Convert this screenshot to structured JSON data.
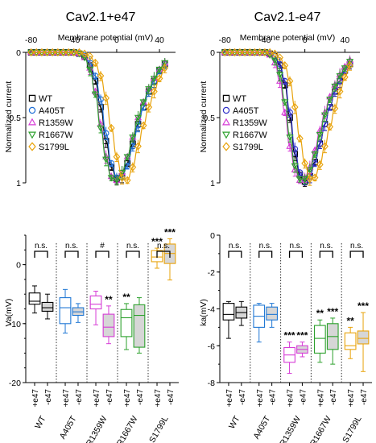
{
  "chart_data": [
    {
      "type": "line",
      "title": "Cav2.1+e47",
      "xlabel": "Membrane potential (mV)",
      "ylabel": "Normalized current",
      "xlim": [
        -85,
        55
      ],
      "ylim": [
        0,
        1
      ],
      "y_inverted": true,
      "x_ticks": [
        -80,
        -40,
        0,
        40
      ],
      "y_ticks": [
        "0",
        "0.5",
        "1"
      ],
      "x": [
        -80,
        -75,
        -70,
        -65,
        -60,
        -55,
        -50,
        -45,
        -40,
        -35,
        -30,
        -25,
        -20,
        -15,
        -10,
        -5,
        0,
        5,
        10,
        15,
        20,
        25,
        30,
        35,
        40,
        45
      ],
      "series": [
        {
          "name": "WT",
          "marker": "square",
          "color": "#000000",
          "values": [
            0,
            0,
            0,
            0,
            0,
            0,
            0,
            0,
            0,
            0.01,
            0.03,
            0.1,
            0.22,
            0.42,
            0.68,
            0.88,
            0.97,
            0.95,
            0.85,
            0.7,
            0.55,
            0.42,
            0.3,
            0.22,
            0.14,
            0.09
          ]
        },
        {
          "name": "A405T",
          "marker": "circle",
          "color": "#1f6fd6",
          "values": [
            0,
            0,
            0,
            0,
            0,
            0,
            0,
            0,
            0,
            0.01,
            0.02,
            0.08,
            0.18,
            0.36,
            0.62,
            0.85,
            0.96,
            0.96,
            0.87,
            0.72,
            0.56,
            0.42,
            0.3,
            0.22,
            0.14,
            0.09
          ]
        },
        {
          "name": "R1359W",
          "marker": "triangle-up",
          "color": "#d63bd6",
          "values": [
            0,
            0,
            0,
            0,
            0,
            0,
            0,
            0,
            0,
            0.01,
            0.04,
            0.12,
            0.3,
            0.55,
            0.8,
            0.95,
            0.98,
            0.92,
            0.8,
            0.65,
            0.5,
            0.38,
            0.28,
            0.2,
            0.13,
            0.08
          ]
        },
        {
          "name": "R1667W",
          "marker": "triangle-down",
          "color": "#2ca02c",
          "values": [
            0,
            0,
            0,
            0,
            0,
            0,
            0,
            0,
            0,
            0.01,
            0.04,
            0.13,
            0.32,
            0.58,
            0.82,
            0.96,
            0.98,
            0.92,
            0.8,
            0.65,
            0.5,
            0.38,
            0.28,
            0.2,
            0.13,
            0.08
          ]
        },
        {
          "name": "S1799L",
          "marker": "diamond",
          "color": "#e8a30c",
          "values": [
            0,
            0,
            0,
            0,
            0,
            0,
            0,
            0,
            0,
            0,
            0.01,
            0.03,
            0.08,
            0.18,
            0.35,
            0.58,
            0.8,
            0.96,
            0.98,
            0.88,
            0.72,
            0.56,
            0.42,
            0.3,
            0.2,
            0.12
          ]
        }
      ]
    },
    {
      "type": "line",
      "title": "Cav2.1-e47",
      "xlabel": "Membrane potential (mV)",
      "ylabel": "Normalized current",
      "xlim": [
        -85,
        55
      ],
      "ylim": [
        0,
        1
      ],
      "y_inverted": true,
      "x_ticks": [
        -80,
        -40,
        0,
        40
      ],
      "y_ticks": [
        "0",
        "0.5",
        "1"
      ],
      "x": [
        -80,
        -75,
        -70,
        -65,
        -60,
        -55,
        -50,
        -45,
        -40,
        -35,
        -30,
        -25,
        -20,
        -15,
        -10,
        -5,
        0,
        5,
        10,
        15,
        20,
        25,
        30,
        35,
        40,
        45
      ],
      "series": [
        {
          "name": "WT",
          "marker": "square",
          "color": "#000000",
          "values": [
            0,
            0,
            0,
            0,
            0,
            0,
            0,
            0,
            0,
            0.01,
            0.03,
            0.1,
            0.25,
            0.5,
            0.78,
            0.94,
            0.99,
            0.95,
            0.84,
            0.7,
            0.55,
            0.42,
            0.3,
            0.22,
            0.14,
            0.09
          ]
        },
        {
          "name": "A405T",
          "marker": "circle",
          "color": "#3030c8",
          "values": [
            0,
            0,
            0,
            0,
            0,
            0,
            0,
            0,
            0,
            0.01,
            0.03,
            0.09,
            0.22,
            0.46,
            0.74,
            0.92,
            0.98,
            0.95,
            0.85,
            0.7,
            0.55,
            0.42,
            0.3,
            0.22,
            0.14,
            0.09
          ]
        },
        {
          "name": "R1359W",
          "marker": "triangle-up",
          "color": "#d63bd6",
          "values": [
            0,
            0,
            0,
            0,
            0,
            0,
            0,
            0,
            0,
            0.02,
            0.08,
            0.22,
            0.46,
            0.72,
            0.9,
            0.98,
            0.96,
            0.88,
            0.75,
            0.6,
            0.46,
            0.34,
            0.25,
            0.17,
            0.11,
            0.06
          ]
        },
        {
          "name": "R1667W",
          "marker": "triangle-down",
          "color": "#2ca02c",
          "values": [
            0,
            0,
            0,
            0,
            0,
            0,
            0,
            0,
            0,
            0.02,
            0.06,
            0.17,
            0.38,
            0.65,
            0.87,
            0.97,
            0.97,
            0.9,
            0.78,
            0.63,
            0.48,
            0.36,
            0.26,
            0.18,
            0.12,
            0.07
          ]
        },
        {
          "name": "S1799L",
          "marker": "diamond",
          "color": "#e8a30c",
          "values": [
            0,
            0,
            0,
            0,
            0,
            0,
            0,
            0,
            0,
            0,
            0.01,
            0.04,
            0.1,
            0.22,
            0.42,
            0.66,
            0.85,
            0.97,
            0.96,
            0.86,
            0.72,
            0.57,
            0.43,
            0.3,
            0.19,
            0.1
          ]
        }
      ]
    },
    {
      "type": "box",
      "ylabel": "Va(mV)",
      "ylim": [
        -20,
        5
      ],
      "y_ticks": [
        -20,
        -10,
        0
      ],
      "categories": [
        "WT",
        "A405T",
        "R1359W",
        "R1667W",
        "S1799L"
      ],
      "box_labels": [
        "+e47",
        "-e47"
      ],
      "boxes": [
        {
          "group": "WT",
          "variant": "+e47",
          "color": "#000000",
          "fill": "none",
          "min": -8.2,
          "q1": -6.7,
          "median": -6.2,
          "q3": -4.8,
          "max": -3.6
        },
        {
          "group": "WT",
          "variant": "-e47",
          "color": "#000000",
          "fill": "grey",
          "min": -9.2,
          "q1": -7.9,
          "median": -7.3,
          "q3": -6.4,
          "max": -5.0
        },
        {
          "group": "A405T",
          "variant": "+e47",
          "color": "#1f77d4",
          "fill": "none",
          "min": -11.6,
          "q1": -10.0,
          "median": -7.3,
          "q3": -5.6,
          "max": -4.2
        },
        {
          "group": "A405T",
          "variant": "-e47",
          "color": "#1f77d4",
          "fill": "grey",
          "min": -9.8,
          "q1": -8.6,
          "median": -8.0,
          "q3": -7.3,
          "max": -6.6
        },
        {
          "group": "R1359W",
          "variant": "+e47",
          "color": "#d63bd6",
          "fill": "none",
          "min": -10.2,
          "q1": -7.5,
          "median": -6.7,
          "q3": -5.3,
          "max": -4.5
        },
        {
          "group": "R1359W",
          "variant": "-e47",
          "color": "#d63bd6",
          "fill": "grey",
          "min": -13.4,
          "q1": -12.2,
          "median": -10.6,
          "q3": -8.4,
          "max": -7.0
        },
        {
          "group": "R1667W",
          "variant": "+e47",
          "color": "#2ca02c",
          "fill": "none",
          "min": -14.4,
          "q1": -12.2,
          "median": -9.0,
          "q3": -7.6,
          "max": -6.6
        },
        {
          "group": "R1667W",
          "variant": "-e47",
          "color": "#2ca02c",
          "fill": "grey",
          "min": -15.0,
          "q1": -14.0,
          "median": -8.6,
          "q3": -6.8,
          "max": -5.6
        },
        {
          "group": "S1799L",
          "variant": "+e47",
          "color": "#e8a30c",
          "fill": "none",
          "min": -0.6,
          "q1": 0.5,
          "median": 1.3,
          "q3": 2.4,
          "max": 2.8
        },
        {
          "group": "S1799L",
          "variant": "-e47",
          "color": "#e8a30c",
          "fill": "grey",
          "min": -2.6,
          "q1": 0.2,
          "median": 1.9,
          "q3": 3.5,
          "max": 4.4
        }
      ],
      "comparisons": [
        "n.s.",
        "n.s.",
        "#",
        "n.s.",
        "n.s."
      ],
      "significance": [
        {
          "group": "R1359W",
          "variant": "-e47",
          "text": "**"
        },
        {
          "group": "R1667W",
          "variant": "+e47",
          "text": "**"
        },
        {
          "group": "S1799L",
          "variant": "+e47",
          "text": "***"
        },
        {
          "group": "S1799L",
          "variant": "-e47",
          "text": "***"
        }
      ]
    },
    {
      "type": "box",
      "ylabel": "ka(mV)",
      "ylim": [
        -8,
        0
      ],
      "y_ticks": [
        -8,
        -6,
        -4,
        -2,
        0
      ],
      "categories": [
        "WT",
        "A405T",
        "R1359W",
        "R1667W",
        "S1799L"
      ],
      "box_labels": [
        "+e47",
        "-e47"
      ],
      "boxes": [
        {
          "group": "WT",
          "variant": "+e47",
          "color": "#000000",
          "fill": "none",
          "min": -5.6,
          "q1": -4.6,
          "median": -4.3,
          "q3": -3.7,
          "max": -3.6
        },
        {
          "group": "WT",
          "variant": "-e47",
          "color": "#000000",
          "fill": "grey",
          "min": -4.9,
          "q1": -4.5,
          "median": -4.2,
          "q3": -3.9,
          "max": -3.6
        },
        {
          "group": "A405T",
          "variant": "+e47",
          "color": "#1f77d4",
          "fill": "none",
          "min": -5.8,
          "q1": -5.0,
          "median": -4.4,
          "q3": -3.8,
          "max": -3.7
        },
        {
          "group": "A405T",
          "variant": "-e47",
          "color": "#1f77d4",
          "fill": "grey",
          "min": -5.0,
          "q1": -4.6,
          "median": -4.3,
          "q3": -3.9,
          "max": -3.7
        },
        {
          "group": "R1359W",
          "variant": "+e47",
          "color": "#d63bd6",
          "fill": "none",
          "min": -7.5,
          "q1": -6.9,
          "median": -6.5,
          "q3": -6.1,
          "max": -5.8
        },
        {
          "group": "R1359W",
          "variant": "-e47",
          "color": "#d63bd6",
          "fill": "grey",
          "min": -6.6,
          "q1": -6.4,
          "median": -6.2,
          "q3": -6.0,
          "max": -5.8
        },
        {
          "group": "R1667W",
          "variant": "+e47",
          "color": "#2ca02c",
          "fill": "none",
          "min": -6.9,
          "q1": -6.4,
          "median": -5.6,
          "q3": -4.9,
          "max": -4.6
        },
        {
          "group": "R1667W",
          "variant": "-e47",
          "color": "#2ca02c",
          "fill": "grey",
          "min": -7.0,
          "q1": -6.2,
          "median": -5.5,
          "q3": -4.8,
          "max": -4.5
        },
        {
          "group": "S1799L",
          "variant": "+e47",
          "color": "#e8a30c",
          "fill": "none",
          "min": -6.7,
          "q1": -6.2,
          "median": -6.0,
          "q3": -5.3,
          "max": -5.0
        },
        {
          "group": "S1799L",
          "variant": "-e47",
          "color": "#e8a30c",
          "fill": "grey",
          "min": -7.4,
          "q1": -5.9,
          "median": -5.6,
          "q3": -5.2,
          "max": -4.2
        }
      ],
      "comparisons": [
        "n.s.",
        "n.s.",
        "n.s.",
        "n.s.",
        "n.s."
      ],
      "significance": [
        {
          "group": "R1359W",
          "variant": "+e47",
          "text": "***"
        },
        {
          "group": "R1359W",
          "variant": "-e47",
          "text": "***"
        },
        {
          "group": "R1667W",
          "variant": "+e47",
          "text": "**"
        },
        {
          "group": "R1667W",
          "variant": "-e47",
          "text": "***"
        },
        {
          "group": "S1799L",
          "variant": "+e47",
          "text": "**"
        },
        {
          "group": "S1799L",
          "variant": "-e47",
          "text": "***"
        }
      ]
    }
  ]
}
